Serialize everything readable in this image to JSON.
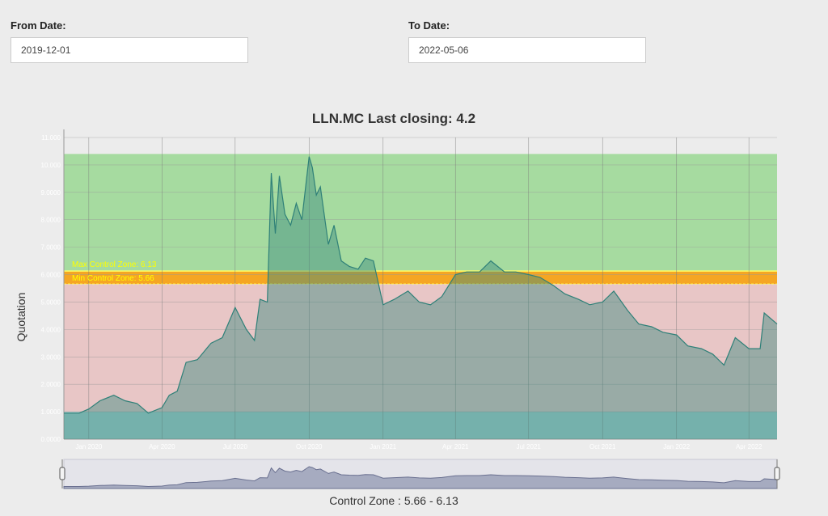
{
  "filters": {
    "from_label": "From Date:",
    "from_value": "2019-12-01",
    "to_label": "To Date:",
    "to_value": "2022-05-06"
  },
  "footer": {
    "control_zone_text": "Control Zone : 5.66 - 6.13"
  },
  "colors": {
    "green_zone": "#a6dba0",
    "red_zone": "#e8c6c6",
    "control_band": "#f5a623",
    "teal_zone": "#a6d1d1",
    "series_fill": "#3a8a7e",
    "series_line": "#2f8078",
    "zone_text": "#ffff00"
  },
  "chart_data": {
    "type": "area",
    "title": "LLN.MC Last closing: 4.2",
    "ylabel": "Quotation",
    "xlabel": "",
    "ylim": [
      0,
      11
    ],
    "y_ticks": [
      "0.0000",
      "1.0000",
      "2.0000",
      "3.0000",
      "4.0000",
      "5.0000",
      "6.0000",
      "7.0000",
      "8.0000",
      "9.0000",
      "10.000",
      "11.000"
    ],
    "x_range": [
      "2019-12-01",
      "2022-05-06"
    ],
    "x_ticks": [
      {
        "date": "2020-01-01",
        "label": "Jan 2020"
      },
      {
        "date": "2020-04-01",
        "label": "Apr 2020"
      },
      {
        "date": "2020-07-01",
        "label": "Jul 2020"
      },
      {
        "date": "2020-10-01",
        "label": "Oct 2020"
      },
      {
        "date": "2021-01-01",
        "label": "Jan 2021"
      },
      {
        "date": "2021-04-01",
        "label": "Apr 2021"
      },
      {
        "date": "2021-07-01",
        "label": "Jul 2021"
      },
      {
        "date": "2021-10-01",
        "label": "Oct 2021"
      },
      {
        "date": "2022-01-01",
        "label": "Jan 2022"
      },
      {
        "date": "2022-04-01",
        "label": "Apr 2022"
      }
    ],
    "bands": [
      {
        "from": 0,
        "to": 1.0,
        "color": "#a6d1d1"
      },
      {
        "from": 1.0,
        "to": 5.66,
        "color": "#e8c6c6"
      },
      {
        "from": 5.66,
        "to": 6.13,
        "color": "#f5a623"
      },
      {
        "from": 6.13,
        "to": 10.4,
        "color": "#a6dba0"
      }
    ],
    "zone_labels": {
      "max": "Max Control Zone:  6.13",
      "min": "Min Control Zone:  5.66"
    },
    "series": [
      {
        "x": [
          "2019-12-01",
          "2019-12-20",
          "2020-01-01",
          "2020-01-15",
          "2020-02-01",
          "2020-02-15",
          "2020-03-01",
          "2020-03-15",
          "2020-04-01",
          "2020-04-10",
          "2020-04-20",
          "2020-05-01",
          "2020-05-15",
          "2020-06-01",
          "2020-06-15",
          "2020-07-01",
          "2020-07-15",
          "2020-07-25",
          "2020-08-01",
          "2020-08-10",
          "2020-08-15",
          "2020-08-20",
          "2020-08-25",
          "2020-09-01",
          "2020-09-08",
          "2020-09-15",
          "2020-09-22",
          "2020-10-01",
          "2020-10-05",
          "2020-10-10",
          "2020-10-15",
          "2020-10-25",
          "2020-11-01",
          "2020-11-10",
          "2020-11-20",
          "2020-12-01",
          "2020-12-10",
          "2020-12-20",
          "2021-01-01",
          "2021-01-15",
          "2021-02-01",
          "2021-02-15",
          "2021-03-01",
          "2021-03-15",
          "2021-04-01",
          "2021-04-15",
          "2021-05-01",
          "2021-05-15",
          "2021-06-01",
          "2021-06-15",
          "2021-07-01",
          "2021-07-15",
          "2021-08-01",
          "2021-08-15",
          "2021-09-01",
          "2021-09-15",
          "2021-10-01",
          "2021-10-15",
          "2021-11-01",
          "2021-11-15",
          "2021-12-01",
          "2021-12-15",
          "2022-01-01",
          "2022-01-15",
          "2022-02-01",
          "2022-02-15",
          "2022-03-01",
          "2022-03-15",
          "2022-04-01",
          "2022-04-15",
          "2022-04-20",
          "2022-05-06"
        ],
        "values": [
          0.95,
          0.95,
          1.1,
          1.4,
          1.6,
          1.4,
          1.3,
          0.95,
          1.15,
          1.6,
          1.75,
          2.8,
          2.9,
          3.5,
          3.7,
          4.8,
          4.0,
          3.6,
          5.1,
          5.0,
          9.7,
          7.5,
          9.6,
          8.2,
          7.8,
          8.6,
          8.0,
          10.3,
          9.9,
          8.9,
          9.2,
          7.1,
          7.8,
          6.5,
          6.3,
          6.2,
          6.6,
          6.5,
          4.9,
          5.1,
          5.4,
          5.0,
          4.9,
          5.2,
          6.0,
          6.1,
          6.1,
          6.5,
          6.1,
          6.1,
          6.0,
          5.9,
          5.6,
          5.3,
          5.1,
          4.9,
          5.0,
          5.4,
          4.7,
          4.2,
          4.1,
          3.9,
          3.8,
          3.4,
          3.3,
          3.1,
          2.7,
          3.7,
          3.3,
          3.3,
          4.6,
          4.2
        ]
      }
    ]
  }
}
